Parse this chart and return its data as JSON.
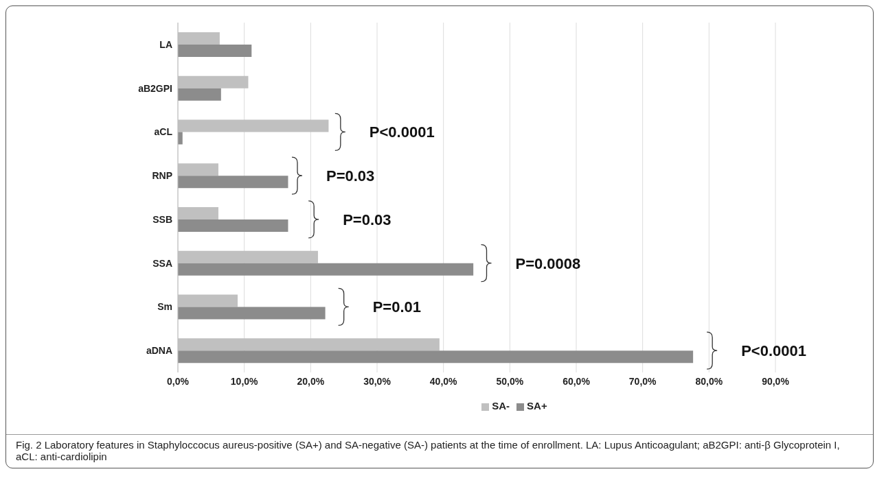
{
  "chart_data": {
    "type": "bar",
    "orientation": "horizontal",
    "categories": [
      "LA",
      "aB2GPI",
      "aCL",
      "RNP",
      "SSB",
      "SSA",
      "Sm",
      "aDNA"
    ],
    "series": [
      {
        "name": "SA-",
        "color": "#c0c0c0",
        "values": [
          6.3,
          10.6,
          22.7,
          6.1,
          6.1,
          21.1,
          9.0,
          39.4
        ]
      },
      {
        "name": "SA+",
        "color": "#8c8c8c",
        "values": [
          11.1,
          6.5,
          0.7,
          16.6,
          16.6,
          44.5,
          22.2,
          77.6
        ]
      }
    ],
    "xlim": [
      0,
      90
    ],
    "xticks": [
      {
        "value": 0,
        "label": "0,0%"
      },
      {
        "value": 10,
        "label": "10,0%"
      },
      {
        "value": 20,
        "label": "20,0%"
      },
      {
        "value": 30,
        "label": "30,0%"
      },
      {
        "value": 40,
        "label": "40,0%"
      },
      {
        "value": 50,
        "label": "50,0%"
      },
      {
        "value": 60,
        "label": "60,0%"
      },
      {
        "value": 70,
        "label": "70,0%"
      },
      {
        "value": 80,
        "label": "80,0%"
      },
      {
        "value": 90,
        "label": "90,0%"
      }
    ],
    "grid": "x",
    "legend": "bottom",
    "annotations": [
      "P<0.0001",
      "P=0.03",
      "P=0.03",
      "P=0.0008",
      "P=0.01",
      "P<0.0001",
      "Fig. 2 Laboratory features in Staphyloccocus aureus-positive (SA+) and SA-negative (SA-) patients at the time of enrollment. LA: Lupus Anticoagulant; aB2GPI: anti-β Glycoprotein I, aCL: anti-cardiolipin"
    ]
  }
}
